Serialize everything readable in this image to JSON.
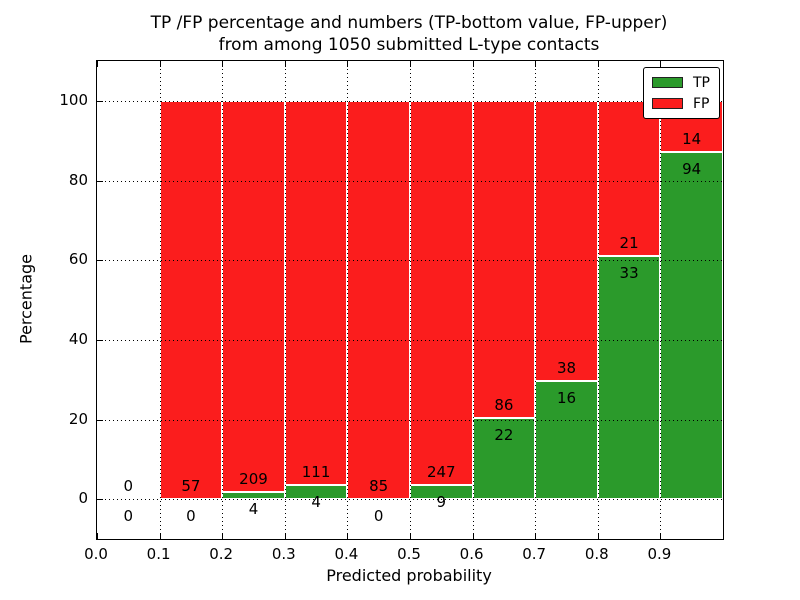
{
  "chart_data": {
    "type": "bar",
    "stacked": true,
    "title_line1": "TP /FP percentage and numbers (TP-bottom value, FP-upper)",
    "title_line2": "from among 1050 submitted L-type contacts",
    "xlabel": "Predicted probability",
    "ylabel": "Percentage",
    "xlim": [
      0.0,
      1.0
    ],
    "ylim": [
      -10,
      110
    ],
    "xtick_labels": [
      "0.0",
      "0.1",
      "0.2",
      "0.3",
      "0.4",
      "0.5",
      "0.6",
      "0.7",
      "0.8",
      "0.9"
    ],
    "ytick_values": [
      0,
      20,
      40,
      60,
      80,
      100
    ],
    "grid": "dotted-black",
    "bar_edge_color": "#ffffff",
    "total_contacts": 1050,
    "legend": {
      "position": "upper right",
      "entries": [
        {
          "label": "TP",
          "color": "#2b9a2b"
        },
        {
          "label": "FP",
          "color": "#fb1d1d"
        }
      ]
    },
    "bins": [
      {
        "range": [
          0.0,
          0.1
        ],
        "tp_count": 0,
        "fp_count": 0,
        "tp_pct": 0,
        "fp_pct": 0
      },
      {
        "range": [
          0.1,
          0.2
        ],
        "tp_count": 0,
        "fp_count": 57,
        "tp_pct": 0,
        "fp_pct": 100
      },
      {
        "range": [
          0.2,
          0.3
        ],
        "tp_count": 4,
        "fp_count": 209,
        "tp_pct": 1.88,
        "fp_pct": 98.12
      },
      {
        "range": [
          0.3,
          0.4
        ],
        "tp_count": 4,
        "fp_count": 111,
        "tp_pct": 3.48,
        "fp_pct": 96.52
      },
      {
        "range": [
          0.4,
          0.5
        ],
        "tp_count": 0,
        "fp_count": 85,
        "tp_pct": 0,
        "fp_pct": 100
      },
      {
        "range": [
          0.5,
          0.6
        ],
        "tp_count": 9,
        "fp_count": 247,
        "tp_pct": 3.52,
        "fp_pct": 96.48
      },
      {
        "range": [
          0.6,
          0.7
        ],
        "tp_count": 22,
        "fp_count": 86,
        "tp_pct": 20.37,
        "fp_pct": 79.63
      },
      {
        "range": [
          0.7,
          0.8
        ],
        "tp_count": 16,
        "fp_count": 38,
        "tp_pct": 29.63,
        "fp_pct": 70.37
      },
      {
        "range": [
          0.8,
          0.9
        ],
        "tp_count": 33,
        "fp_count": 21,
        "tp_pct": 61.11,
        "fp_pct": 38.89
      },
      {
        "range": [
          0.9,
          1.0
        ],
        "tp_count": 94,
        "fp_count": 14,
        "tp_pct": 87.04,
        "fp_pct": 12.96
      }
    ]
  }
}
